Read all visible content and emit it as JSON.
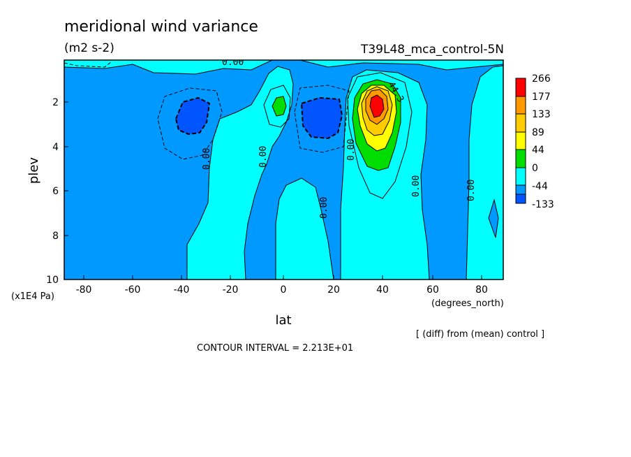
{
  "chart_data": {
    "type": "heatmap",
    "title": "meridional wind variance",
    "subtitle": "(m2 s-2)",
    "run_label": "T39L48_mca_control-5N",
    "xlabel": "lat",
    "x_units": "(degrees_north)",
    "ylabel": "plev",
    "y_units": "(x1E4 Pa)",
    "xlim": [
      -90,
      90
    ],
    "ylim": [
      10,
      0.2
    ],
    "y_inverted": true,
    "x_ticks": [
      "-80",
      "-60",
      "-40",
      "-20",
      "0",
      "20",
      "40",
      "60",
      "80"
    ],
    "y_ticks": [
      "2",
      "4",
      "6",
      "8",
      "10"
    ],
    "colorbar": {
      "labels": [
        "266",
        "177",
        "133",
        "89",
        "44",
        "0",
        "-44",
        "-133"
      ],
      "colors": [
        "#ff0000",
        "#ff9900",
        "#ffcc00",
        "#ffff00",
        "#00dd00",
        "#00ffff",
        "#0099ff",
        "#0055ff"
      ]
    },
    "contour_labels": [
      "0.00",
      "0.00",
      "0.00",
      "0.00",
      "0.00",
      "0.00",
      "0.00",
      "44.3"
    ],
    "features": [
      {
        "kind": "max",
        "lat": 37,
        "plev": 2.3,
        "level": "266"
      },
      {
        "kind": "max",
        "lat": -2,
        "plev": 2.1,
        "level": "44"
      },
      {
        "kind": "min",
        "lat": -37,
        "plev": 2.4,
        "level": "-44"
      },
      {
        "kind": "min",
        "lat": 12,
        "plev": 2.6,
        "level": "-44"
      }
    ],
    "note": "[ (diff) from (mean) control ]",
    "contour_interval": "CONTOUR INTERVAL = 2.213E+01"
  }
}
